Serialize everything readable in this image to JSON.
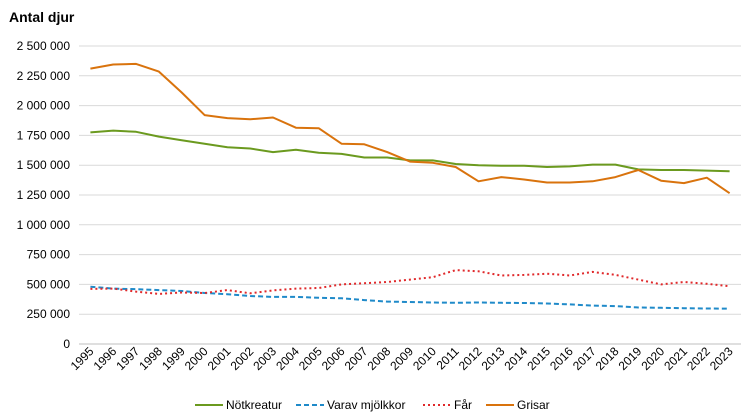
{
  "chart_data": {
    "type": "line",
    "title": "",
    "ylabel": "Antal djur",
    "xlabel": "",
    "ylim": [
      0,
      2500000
    ],
    "yticks": [
      0,
      250000,
      500000,
      750000,
      1000000,
      1250000,
      1500000,
      1750000,
      2000000,
      2250000,
      2500000
    ],
    "ytick_labels": [
      "0",
      "250 000",
      "500 000",
      "750 000",
      "1 000 000",
      "1 250 000",
      "1 500 000",
      "1 750 000",
      "2 000 000",
      "2 250 000",
      "2 500 000"
    ],
    "grid": "horizontal",
    "legend_position": "bottom",
    "x": [
      "1995",
      "1996",
      "1997",
      "1998",
      "1999",
      "2000",
      "2001",
      "2002",
      "2003",
      "2004",
      "2005",
      "2006",
      "2007",
      "2008",
      "2009",
      "2010",
      "2011",
      "2012",
      "2013",
      "2014",
      "2015",
      "2016",
      "2017",
      "2018",
      "2019",
      "2020",
      "2021",
      "2022",
      "2023"
    ],
    "series": [
      {
        "name": "Nötkreatur",
        "color": "#6b9a1f",
        "style": "solid",
        "values": [
          1775000,
          1790000,
          1780000,
          1740000,
          1710000,
          1680000,
          1650000,
          1640000,
          1610000,
          1630000,
          1605000,
          1595000,
          1565000,
          1565000,
          1540000,
          1540000,
          1510000,
          1500000,
          1495000,
          1495000,
          1485000,
          1490000,
          1505000,
          1505000,
          1465000,
          1460000,
          1460000,
          1455000,
          1450000
        ]
      },
      {
        "name": "Varav mjölkkor",
        "color": "#1f8ac9",
        "style": "dashed",
        "values": [
          481000,
          465000,
          460000,
          452000,
          445000,
          428000,
          418000,
          403000,
          395000,
          395000,
          388000,
          383000,
          368000,
          356000,
          352000,
          348000,
          346000,
          348000,
          346000,
          344000,
          340000,
          332000,
          322000,
          318000,
          306000,
          304000,
          300000,
          298000,
          296000
        ]
      },
      {
        "name": "Får",
        "color": "#e0292b",
        "style": "dotted",
        "values": [
          462000,
          465000,
          440000,
          420000,
          432000,
          428000,
          452000,
          425000,
          450000,
          465000,
          470000,
          500000,
          510000,
          520000,
          540000,
          560000,
          620000,
          610000,
          575000,
          580000,
          590000,
          575000,
          605000,
          580000,
          540000,
          500000,
          520000,
          505000,
          485000
        ]
      },
      {
        "name": "Grisar",
        "color": "#d9730d",
        "style": "solid",
        "values": [
          2310000,
          2345000,
          2350000,
          2285000,
          2110000,
          1920000,
          1895000,
          1885000,
          1900000,
          1815000,
          1810000,
          1680000,
          1675000,
          1610000,
          1530000,
          1520000,
          1485000,
          1365000,
          1400000,
          1380000,
          1355000,
          1355000,
          1365000,
          1400000,
          1460000,
          1370000,
          1350000,
          1395000,
          1265000
        ]
      }
    ]
  }
}
